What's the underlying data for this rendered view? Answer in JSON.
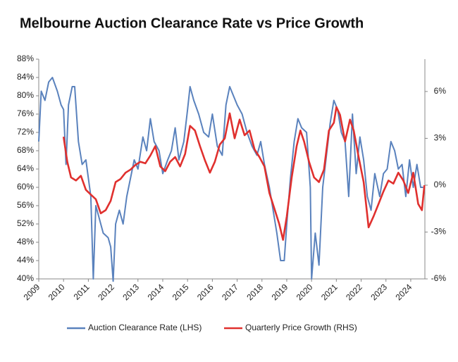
{
  "chart_data": {
    "type": "line",
    "title": "Melbourne Auction Clearance Rate vs Price Growth",
    "xlim": [
      2009,
      2024.57
    ],
    "xticks": [
      2009,
      2010,
      2011,
      2012,
      2013,
      2014,
      2015,
      2016,
      2017,
      2018,
      2019,
      2020,
      2021,
      2022,
      2023,
      2024
    ],
    "ylim": [
      40,
      88
    ],
    "yticks": [
      {
        "value": 40,
        "label": "40%"
      },
      {
        "value": 44,
        "label": "44%"
      },
      {
        "value": 48,
        "label": "48%"
      },
      {
        "value": 52,
        "label": "52%"
      },
      {
        "value": 56,
        "label": "56%"
      },
      {
        "value": 60,
        "label": "60%"
      },
      {
        "value": 64,
        "label": "64%"
      },
      {
        "value": 68,
        "label": "68%"
      },
      {
        "value": 72,
        "label": "72%"
      },
      {
        "value": 76,
        "label": "76%"
      },
      {
        "value": 80,
        "label": "80%"
      },
      {
        "value": 84,
        "label": "84%"
      },
      {
        "value": 88,
        "label": "88%"
      }
    ],
    "y2lim": [
      -6,
      8.07
    ],
    "y2ticks": [
      {
        "value": -6,
        "label": "-6%"
      },
      {
        "value": -3,
        "label": "-3%"
      },
      {
        "value": 0,
        "label": "0%"
      },
      {
        "value": 3,
        "label": "3%"
      },
      {
        "value": 6,
        "label": "6%"
      }
    ],
    "legend": "bottom",
    "series": [
      {
        "name": "Auction Clearance Rate (LHS)",
        "color": "#5a82bd",
        "axis": "y",
        "x": [
          2009.0,
          2009.1,
          2009.25,
          2009.4,
          2009.55,
          2009.75,
          2009.9,
          2010.0,
          2010.1,
          2010.2,
          2010.35,
          2010.45,
          2010.6,
          2010.75,
          2010.9,
          2011.0,
          2011.1,
          2011.2,
          2011.3,
          2011.4,
          2011.6,
          2011.8,
          2011.9,
          2012.0,
          2012.1,
          2012.25,
          2012.4,
          2012.55,
          2012.7,
          2012.85,
          2013.0,
          2013.2,
          2013.35,
          2013.5,
          2013.65,
          2013.85,
          2014.0,
          2014.2,
          2014.35,
          2014.5,
          2014.65,
          2014.85,
          2015.0,
          2015.1,
          2015.25,
          2015.45,
          2015.65,
          2015.85,
          2016.0,
          2016.2,
          2016.4,
          2016.55,
          2016.7,
          2016.85,
          2017.0,
          2017.2,
          2017.4,
          2017.6,
          2017.8,
          2017.95,
          2018.1,
          2018.3,
          2018.45,
          2018.6,
          2018.75,
          2018.9,
          2019.0,
          2019.15,
          2019.3,
          2019.45,
          2019.6,
          2019.8,
          2019.95,
          2020.0,
          2020.15,
          2020.3,
          2020.45,
          2020.6,
          2020.75,
          2020.9,
          2021.05,
          2021.2,
          2021.35,
          2021.5,
          2021.65,
          2021.8,
          2021.95,
          2022.1,
          2022.25,
          2022.4,
          2022.55,
          2022.75,
          2022.9,
          2023.05,
          2023.2,
          2023.35,
          2023.5,
          2023.65,
          2023.8,
          2023.95,
          2024.1,
          2024.25,
          2024.4,
          2024.5
        ],
        "values": [
          70,
          81,
          79,
          83,
          84,
          81,
          78,
          77,
          65,
          78,
          82,
          82,
          70,
          65,
          66,
          62,
          58,
          40,
          56,
          54,
          50,
          49,
          47,
          39.5,
          52,
          55,
          52,
          58,
          62,
          66,
          64,
          71,
          68,
          75,
          70,
          68,
          63,
          66,
          68,
          73,
          66,
          70,
          77,
          82,
          79,
          76,
          72,
          71,
          76,
          69,
          67,
          78,
          82,
          80,
          78,
          76,
          72,
          69,
          67,
          70,
          65,
          60,
          55,
          50,
          44,
          44,
          52,
          62,
          70,
          75,
          73,
          72,
          60,
          40,
          50,
          43,
          60,
          67,
          74,
          79,
          77,
          72,
          70,
          58,
          76,
          63,
          71,
          66,
          58,
          55,
          63,
          58,
          63,
          64,
          70,
          68,
          64,
          65,
          58,
          66,
          60,
          65,
          60,
          60
        ]
      },
      {
        "name": "Quarterly Price Growth (RHS)",
        "color": "#e0302e",
        "axis": "y2",
        "x": [
          2010.0,
          2010.15,
          2010.3,
          2010.5,
          2010.7,
          2010.9,
          2011.1,
          2011.3,
          2011.5,
          2011.7,
          2011.9,
          2012.1,
          2012.3,
          2012.5,
          2012.7,
          2012.9,
          2013.1,
          2013.3,
          2013.5,
          2013.7,
          2013.9,
          2014.1,
          2014.3,
          2014.5,
          2014.7,
          2014.9,
          2015.1,
          2015.3,
          2015.5,
          2015.7,
          2015.9,
          2016.1,
          2016.3,
          2016.5,
          2016.7,
          2016.9,
          2017.1,
          2017.3,
          2017.5,
          2017.7,
          2017.9,
          2018.1,
          2018.3,
          2018.5,
          2018.7,
          2018.85,
          2019.0,
          2019.2,
          2019.4,
          2019.55,
          2019.7,
          2019.9,
          2020.1,
          2020.3,
          2020.5,
          2020.7,
          2020.9,
          2021.0,
          2021.15,
          2021.35,
          2021.55,
          2021.7,
          2021.9,
          2022.1,
          2022.3,
          2022.5,
          2022.7,
          2022.9,
          2023.1,
          2023.3,
          2023.5,
          2023.7,
          2023.9,
          2024.1,
          2024.3,
          2024.45,
          2024.55
        ],
        "values": [
          3.1,
          1.5,
          0.5,
          0.3,
          0.6,
          -0.3,
          -0.6,
          -0.9,
          -1.8,
          -1.6,
          -1.0,
          0.2,
          0.4,
          0.8,
          1.0,
          1.3,
          1.5,
          1.4,
          1.9,
          2.5,
          1.2,
          0.9,
          1.5,
          1.8,
          1.2,
          2.0,
          3.8,
          3.5,
          2.5,
          1.6,
          0.8,
          1.5,
          2.6,
          3.0,
          4.6,
          3.0,
          4.2,
          3.2,
          3.5,
          2.3,
          1.8,
          1.2,
          -0.5,
          -1.5,
          -2.5,
          -3.5,
          -2.0,
          0.5,
          2.5,
          3.5,
          2.8,
          1.5,
          0.5,
          0.2,
          1.0,
          3.5,
          4.0,
          5.0,
          4.5,
          2.8,
          4.2,
          3.5,
          1.8,
          0.2,
          -2.7,
          -2.0,
          -1.2,
          -0.4,
          0.3,
          0.1,
          0.8,
          0.3,
          -0.5,
          0.8,
          -1.2,
          -1.6,
          0.0
        ]
      }
    ]
  }
}
